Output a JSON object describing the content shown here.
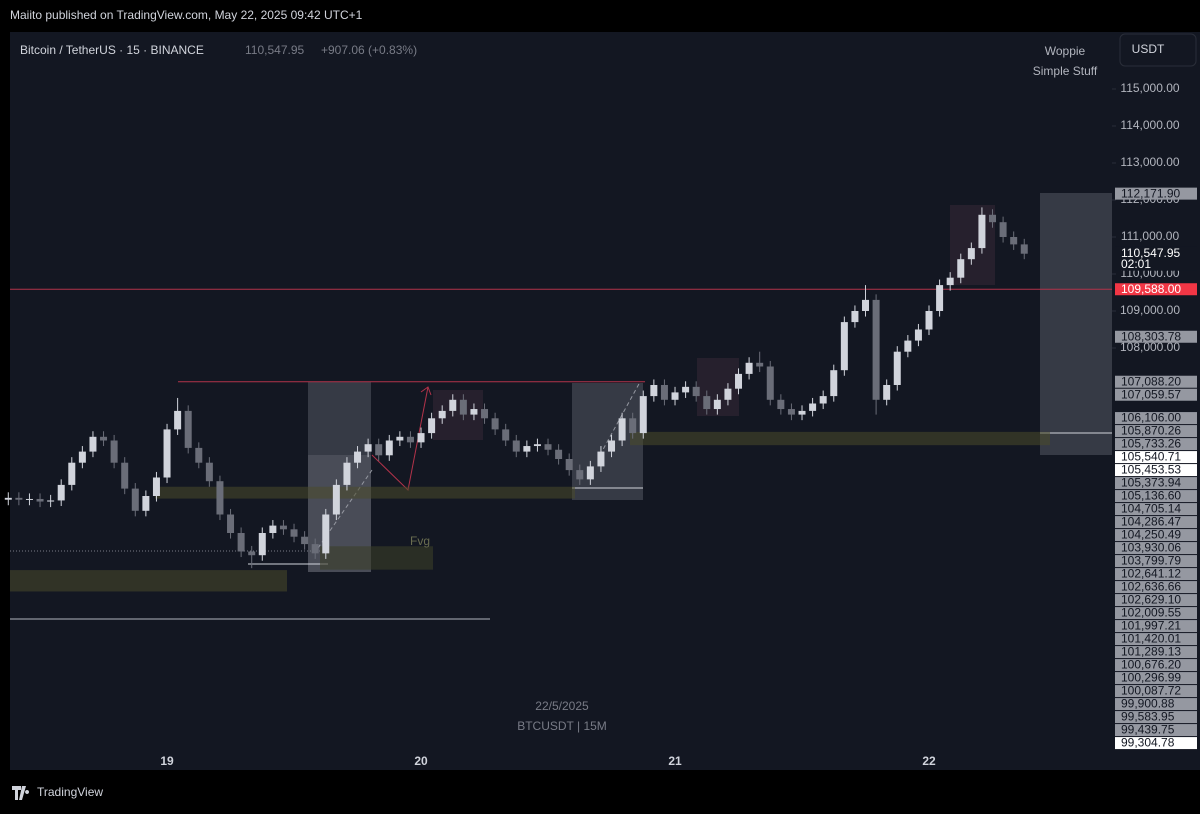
{
  "header": {
    "published": "Maiito published on TradingView.com, May 22, 2025 09:42 UTC+1",
    "footer": "TradingView"
  },
  "chart_data": {
    "type": "candlestick",
    "title": "Bitcoin / TetherUS · 15 · BINANCE",
    "change": "+907.06 (+0.83%)",
    "indicator": [
      "Woppie",
      "Simple Stuff"
    ],
    "currency": "USDT",
    "watermark": [
      "22/5/2025",
      "BTCUSDT | 15M"
    ],
    "annotation": "Fvg",
    "last_price": {
      "value": 110547.95,
      "label": "110,547.95",
      "countdown": "02:01"
    },
    "up_color": "#d1d4dc",
    "down_color": "#6a6d78",
    "categories": [
      null,
      null,
      null,
      null,
      null,
      null,
      null,
      null,
      null,
      null,
      null,
      null,
      null,
      null,
      null,
      "19",
      null,
      null,
      null,
      null,
      null,
      null,
      null,
      null,
      null,
      null,
      null,
      null,
      null,
      null,
      null,
      null,
      null,
      null,
      null,
      null,
      null,
      null,
      null,
      "20",
      null,
      null,
      null,
      null,
      null,
      null,
      null,
      null,
      null,
      null,
      null,
      null,
      null,
      null,
      null,
      null,
      null,
      null,
      null,
      null,
      null,
      null,
      null,
      "21",
      null,
      null,
      null,
      null,
      null,
      null,
      null,
      null,
      null,
      null,
      null,
      null,
      null,
      null,
      null,
      null,
      null,
      null,
      null,
      null,
      null,
      null,
      null,
      "22",
      null,
      null,
      null,
      null,
      null,
      null,
      null,
      null,
      null
    ],
    "open": [
      103900,
      103950,
      103900,
      103920,
      103850,
      103880,
      104300,
      104900,
      105200,
      105600,
      105500,
      104900,
      104200,
      103600,
      104000,
      104500,
      105800,
      106300,
      105300,
      104900,
      104400,
      103500,
      103000,
      102500,
      102400,
      103000,
      103200,
      103100,
      102900,
      102700,
      102450,
      103500,
      104300,
      104900,
      105200,
      105400,
      105100,
      105500,
      105600,
      105450,
      105700,
      106100,
      106300,
      106600,
      106200,
      106350,
      106100,
      105800,
      105500,
      105200,
      105350,
      105400,
      105250,
      105000,
      104700,
      104450,
      104800,
      105200,
      105500,
      106100,
      105700,
      106700,
      107000,
      106600,
      106800,
      106950,
      106700,
      106350,
      106600,
      106900,
      107300,
      107600,
      107500,
      106600,
      106350,
      106200,
      106300,
      106500,
      106700,
      107400,
      108700,
      109000,
      109300,
      106600,
      107000,
      107900,
      108200,
      108500,
      109000,
      109700,
      109900,
      110400,
      110700,
      111600,
      111400,
      111000,
      110800
    ],
    "high": [
      104100,
      104100,
      104070,
      104070,
      104030,
      104450,
      105050,
      105350,
      105750,
      105750,
      105650,
      105050,
      104350,
      104150,
      104650,
      105950,
      106650,
      106450,
      105450,
      105050,
      104550,
      103650,
      103150,
      102650,
      103150,
      103350,
      103350,
      103250,
      103050,
      102850,
      103650,
      104450,
      105050,
      105350,
      105550,
      105550,
      105650,
      105750,
      105750,
      105850,
      106250,
      106450,
      106750,
      106750,
      106500,
      106500,
      106250,
      105950,
      105650,
      105500,
      105550,
      105550,
      105400,
      105150,
      104850,
      104950,
      105350,
      105650,
      106250,
      106250,
      106850,
      107150,
      107150,
      106950,
      107100,
      107100,
      106850,
      106750,
      107050,
      107450,
      107750,
      107900,
      107650,
      106750,
      106500,
      106450,
      106650,
      106850,
      107550,
      108850,
      109150,
      109700,
      109450,
      107150,
      108050,
      108350,
      108650,
      109150,
      109850,
      110050,
      110550,
      110850,
      111800,
      111750,
      111550,
      111150,
      110950
    ],
    "low": [
      103750,
      103750,
      103750,
      103700,
      103700,
      103730,
      104150,
      104750,
      105050,
      105350,
      104750,
      104050,
      103450,
      103450,
      103850,
      104350,
      105650,
      105150,
      104750,
      104250,
      103350,
      102850,
      102350,
      102050,
      102250,
      102850,
      102950,
      102750,
      102550,
      102300,
      102300,
      103350,
      104150,
      104750,
      105050,
      104950,
      104950,
      105350,
      105300,
      105300,
      105550,
      105950,
      106150,
      106050,
      106050,
      105950,
      105650,
      105350,
      105050,
      105050,
      105200,
      105100,
      104850,
      104550,
      104300,
      104300,
      104650,
      105050,
      105350,
      105550,
      105550,
      106550,
      106450,
      106450,
      106650,
      106550,
      106200,
      106200,
      106450,
      106750,
      107150,
      107350,
      106450,
      106200,
      106050,
      106050,
      106150,
      106350,
      106550,
      107250,
      108550,
      108850,
      106200,
      106450,
      106850,
      107750,
      108050,
      108350,
      108850,
      109550,
      109750,
      110250,
      110550,
      111250,
      110850,
      110650,
      110400
    ],
    "close": [
      103950,
      103900,
      103920,
      103850,
      103880,
      104300,
      104900,
      105200,
      105600,
      105500,
      104900,
      104200,
      103600,
      104000,
      104500,
      105800,
      106300,
      105300,
      104900,
      104400,
      103500,
      103000,
      102500,
      102400,
      103000,
      103200,
      103100,
      102900,
      102700,
      102450,
      103500,
      104300,
      104900,
      105200,
      105400,
      105100,
      105500,
      105600,
      105450,
      105700,
      106100,
      106300,
      106600,
      106200,
      106350,
      106100,
      105800,
      105500,
      105200,
      105350,
      105400,
      105250,
      105000,
      104700,
      104450,
      104800,
      105200,
      105500,
      106100,
      105700,
      106700,
      107000,
      106600,
      106800,
      106950,
      106700,
      106350,
      106600,
      106900,
      107300,
      107600,
      107500,
      106600,
      106350,
      106200,
      106300,
      106500,
      106700,
      107400,
      108700,
      109000,
      109300,
      106600,
      107000,
      107900,
      108200,
      108500,
      109000,
      109700,
      109900,
      110400,
      110700,
      111600,
      111400,
      111000,
      110800,
      110547.95
    ],
    "ylim": [
      96595,
      116540
    ],
    "yticks": [
      {
        "value": 108000,
        "label": "108,000.00"
      },
      {
        "value": 109000,
        "label": "109,000.00"
      },
      {
        "value": 110000,
        "label": "110,000.00"
      },
      {
        "value": 111000,
        "label": "111,000.00"
      },
      {
        "value": 112000,
        "label": "112,000.00"
      },
      {
        "value": 113000,
        "label": "113,000.00"
      },
      {
        "value": 114000,
        "label": "114,000.00"
      },
      {
        "value": 115000,
        "label": "115,000.00"
      }
    ],
    "grid": false,
    "price_labels": [
      {
        "value": 112171.9,
        "label": "112,171.90"
      },
      {
        "value": 109588,
        "label": "109,588.00",
        "color": "#f23645"
      },
      {
        "value": 108303.78,
        "label": "108,303.78"
      },
      {
        "value": 107088.2,
        "label": "107,088.20"
      },
      {
        "value": 107059.57,
        "label": "107,059.57"
      },
      {
        "value": 106106,
        "label": "106,106.00"
      },
      {
        "value": 105870.26,
        "label": "105,870.26"
      },
      {
        "value": 105733.26,
        "label": "105,733.26"
      },
      {
        "value": 105540.71,
        "label": "105,540.71",
        "color": "#ffffff"
      },
      {
        "value": 105453.53,
        "label": "105,453.53",
        "color": "#ffffff"
      },
      {
        "value": 105373.94,
        "label": "105,373.94"
      },
      {
        "value": 105136.6,
        "label": "105,136.60"
      },
      {
        "value": 104705.14,
        "label": "104,705.14"
      },
      {
        "value": 104286.47,
        "label": "104,286.47"
      },
      {
        "value": 104250.49,
        "label": "104,250.49"
      },
      {
        "value": 103930.06,
        "label": "103,930.06"
      },
      {
        "value": 103799.79,
        "label": "103,799.79"
      },
      {
        "value": 102641.12,
        "label": "102,641.12"
      },
      {
        "value": 102636.66,
        "label": "102,636.66"
      },
      {
        "value": 102629.1,
        "label": "102,629.10"
      },
      {
        "value": 102009.55,
        "label": "102,009.55"
      },
      {
        "value": 101997.21,
        "label": "101,997.21"
      },
      {
        "value": 101420.01,
        "label": "101,420.01"
      },
      {
        "value": 101289.13,
        "label": "101,289.13"
      },
      {
        "value": 100676.2,
        "label": "100,676.20"
      },
      {
        "value": 100296.99,
        "label": "100,296.99"
      },
      {
        "value": 100087.72,
        "label": "100,087.72"
      },
      {
        "value": 99900.88,
        "label": "99,900.88"
      },
      {
        "value": 99583.95,
        "label": "99,583.95"
      },
      {
        "value": 99439.75,
        "label": "99,439.75"
      },
      {
        "value": 99304.78,
        "label": "99,304.78",
        "color": "#ffffff"
      }
    ]
  }
}
